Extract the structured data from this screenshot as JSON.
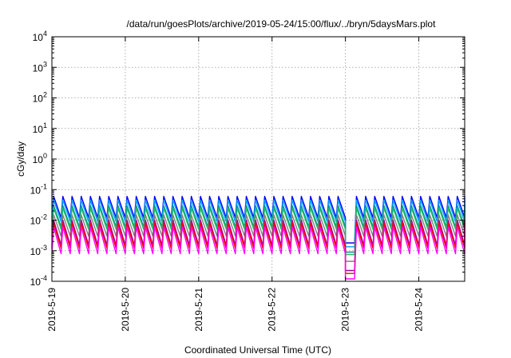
{
  "chart_data": {
    "type": "line",
    "title": "/data/run/goesPlots/archive/2019-05-24/15:00/flux/../bryn/5daysMars.plot",
    "xlabel": "Coordinated Universal Time (UTC)",
    "ylabel": "cGy/day",
    "yscale": "log",
    "ylim": [
      0.0001,
      10000
    ],
    "y_ticks": [
      {
        "base": "10",
        "exp": "-4"
      },
      {
        "base": "10",
        "exp": "-3"
      },
      {
        "base": "10",
        "exp": "-2"
      },
      {
        "base": "10",
        "exp": "-1"
      },
      {
        "base": "10",
        "exp": "0"
      },
      {
        "base": "10",
        "exp": "1"
      },
      {
        "base": "10",
        "exp": "2"
      },
      {
        "base": "10",
        "exp": "3"
      },
      {
        "base": "10",
        "exp": "4"
      }
    ],
    "xlim": [
      "2019-05-19 00:00",
      "2019-05-24 15:00"
    ],
    "x_ticks": [
      "2019-5-19",
      "2019-5-20",
      "2019-5-21",
      "2019-5-22",
      "2019-5-23",
      "2019-5-24"
    ],
    "grid": true,
    "legend": "none",
    "pattern": {
      "cycle_hours": 3,
      "peak_minutes": 35,
      "drop_start": "2019-05-23 00:00",
      "drop_end": "2019-05-23 03:00",
      "drop_factor": 0.15,
      "recovery_start": "2019-05-23 03:00",
      "recovery_peak": "2019-05-23 06:00"
    },
    "series": [
      {
        "color": "#0000ff",
        "peak": 0.06,
        "trough": 0.012
      },
      {
        "color": "#00a0ff",
        "peak": 0.045,
        "trough": 0.009
      },
      {
        "color": "#009090",
        "peak": 0.03,
        "trough": 0.006
      },
      {
        "color": "#20c060",
        "peak": 0.025,
        "trough": 0.005
      },
      {
        "color": "#808080",
        "peak": 0.015,
        "trough": 0.003
      },
      {
        "color": "#a000a0",
        "peak": 0.01,
        "trough": 0.0015
      },
      {
        "color": "#ff0000",
        "peak": 0.008,
        "trough": 0.0012
      },
      {
        "color": "#ff00ff",
        "peak": 0.006,
        "trough": 0.0008
      }
    ]
  }
}
